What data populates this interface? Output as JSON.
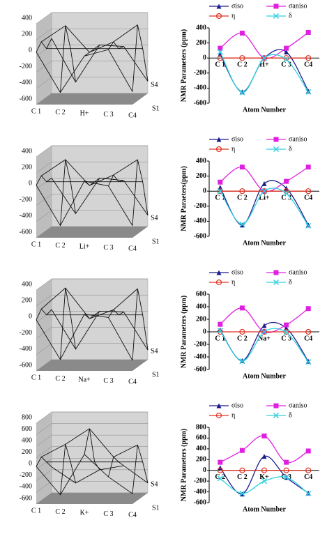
{
  "chart_data": [
    {
      "type": "surface3d",
      "categories": [
        "C 1",
        "C 2",
        "H+",
        "C 3",
        "C4"
      ],
      "series": [
        {
          "values": [
            50,
            -450,
            0,
            80,
            -440
          ]
        },
        {
          "values": [
            130,
            330,
            0,
            130,
            340
          ]
        },
        {
          "values": [
            0,
            0,
            0,
            0,
            0
          ]
        },
        {
          "values": [
            80,
            -460,
            0,
            -20,
            -450
          ]
        }
      ],
      "depth_labels": [
        "S1",
        "S4"
      ],
      "ylim": [
        -600,
        400
      ],
      "yticks": [
        -600,
        -400,
        -200,
        0,
        200,
        400
      ]
    },
    {
      "type": "line",
      "y_label": "NMR Parameters (ppm)",
      "x_label": "Atom Number",
      "categories": [
        "C 1",
        "C 2",
        "H+",
        "C 3",
        "C4"
      ],
      "series": [
        {
          "name": "σiso",
          "color": "#1a1a8c",
          "marker": "triangle",
          "values": [
            50,
            -450,
            0,
            80,
            -440
          ]
        },
        {
          "name": "σaniso",
          "color": "#e020e0",
          "marker": "square",
          "values": [
            130,
            330,
            0,
            130,
            340
          ]
        },
        {
          "name": "η",
          "color": "#e03020",
          "marker": "circle",
          "values": [
            0,
            0,
            0,
            0,
            0
          ]
        },
        {
          "name": "δ",
          "color": "#30d0e0",
          "marker": "x",
          "values": [
            80,
            -460,
            0,
            -20,
            -450
          ]
        }
      ],
      "ylim": [
        -600,
        400
      ],
      "yticks": [
        -600,
        -400,
        -200,
        0,
        200,
        400
      ]
    },
    {
      "type": "surface3d",
      "categories": [
        "C 1",
        "C 2",
        "Li+",
        "C 3",
        "C4"
      ],
      "series": [
        {
          "values": [
            50,
            -450,
            100,
            40,
            -450
          ]
        },
        {
          "values": [
            120,
            320,
            0,
            130,
            320
          ]
        },
        {
          "values": [
            0,
            0,
            0,
            0,
            0
          ]
        },
        {
          "values": [
            0,
            -440,
            0,
            -30,
            -460
          ]
        }
      ],
      "depth_labels": [
        "S1",
        "S4"
      ],
      "ylim": [
        -600,
        400
      ],
      "yticks": [
        -600,
        -400,
        -200,
        0,
        200,
        400
      ]
    },
    {
      "type": "line",
      "y_label": "NMR Paraeters(ppm)",
      "x_label": "Atom Number",
      "categories": [
        "C 1",
        "C 2",
        "Li+",
        "C 3",
        "C4"
      ],
      "series": [
        {
          "name": "σiso",
          "color": "#1a1a8c",
          "marker": "triangle",
          "values": [
            50,
            -450,
            100,
            40,
            -450
          ]
        },
        {
          "name": "σaniso",
          "color": "#e020e0",
          "marker": "square",
          "values": [
            120,
            320,
            0,
            130,
            320
          ]
        },
        {
          "name": "η",
          "color": "#e03020",
          "marker": "circle",
          "values": [
            0,
            0,
            0,
            0,
            0
          ]
        },
        {
          "name": "δ",
          "color": "#30d0e0",
          "marker": "x",
          "values": [
            0,
            -440,
            0,
            -30,
            -460
          ]
        }
      ],
      "ylim": [
        -600,
        400
      ],
      "yticks": [
        -600,
        -400,
        -200,
        0,
        200,
        400
      ]
    },
    {
      "type": "surface3d",
      "categories": [
        "C 1",
        "C 2",
        "Na+",
        "C 3",
        "C4"
      ],
      "series": [
        {
          "values": [
            30,
            -460,
            100,
            60,
            -470
          ]
        },
        {
          "values": [
            120,
            380,
            0,
            110,
            370
          ]
        },
        {
          "values": [
            0,
            0,
            0,
            0,
            0
          ]
        },
        {
          "values": [
            20,
            -470,
            0,
            -10,
            -480
          ]
        }
      ],
      "depth_labels": [
        "S1",
        "S4"
      ],
      "ylim": [
        -600,
        400
      ],
      "yticks": [
        -600,
        -400,
        -200,
        0,
        200,
        400
      ]
    },
    {
      "type": "line",
      "y_label": "NMR Parameters (ppm)",
      "x_label": "Atom Number",
      "categories": [
        "C 1",
        "C 2",
        "Na+",
        "C 3",
        "C4"
      ],
      "series": [
        {
          "name": "σiso",
          "color": "#1a1a8c",
          "marker": "triangle",
          "values": [
            30,
            -460,
            100,
            60,
            -470
          ]
        },
        {
          "name": "σaniso",
          "color": "#e020e0",
          "marker": "square",
          "values": [
            120,
            380,
            0,
            110,
            370
          ]
        },
        {
          "name": "η",
          "color": "#e03020",
          "marker": "circle",
          "values": [
            0,
            0,
            0,
            0,
            0
          ]
        },
        {
          "name": "δ",
          "color": "#30d0e0",
          "marker": "x",
          "values": [
            20,
            -470,
            0,
            -10,
            -480
          ]
        }
      ],
      "ylim": [
        -600,
        600
      ],
      "yticks": [
        -600,
        -400,
        -200,
        0,
        200,
        400,
        600
      ]
    },
    {
      "type": "surface3d",
      "categories": [
        "C 1",
        "C 2",
        "K+",
        "C 3",
        "C4"
      ],
      "series": [
        {
          "values": [
            50,
            -440,
            260,
            -130,
            -420
          ]
        },
        {
          "values": [
            150,
            370,
            640,
            150,
            360
          ]
        },
        {
          "values": [
            0,
            0,
            0,
            0,
            0
          ]
        },
        {
          "values": [
            -150,
            -430,
            -200,
            -130,
            -430
          ]
        }
      ],
      "depth_labels": [
        "S1",
        "S4"
      ],
      "ylim": [
        -600,
        800
      ],
      "yticks": [
        -600,
        -400,
        -200,
        0,
        200,
        400,
        600,
        800
      ]
    },
    {
      "type": "line",
      "y_label": "NMR Parameters (ppm)",
      "x_label": "Atom Number",
      "categories": [
        "C 2",
        "C 2",
        "K+",
        "C 3",
        "C4"
      ],
      "series": [
        {
          "name": "σiso",
          "color": "#1a1a8c",
          "marker": "triangle",
          "values": [
            50,
            -440,
            260,
            -130,
            -420
          ]
        },
        {
          "name": "σaniso",
          "color": "#e020e0",
          "marker": "square",
          "values": [
            150,
            370,
            640,
            150,
            360
          ]
        },
        {
          "name": "η",
          "color": "#e03020",
          "marker": "circle",
          "values": [
            0,
            0,
            0,
            0,
            0
          ]
        },
        {
          "name": "δ",
          "color": "#30d0e0",
          "marker": "x",
          "values": [
            -150,
            -430,
            -200,
            -130,
            -430
          ]
        }
      ],
      "ylim": [
        -600,
        800
      ],
      "yticks": [
        -600,
        -400,
        -200,
        0,
        200,
        400,
        600,
        800
      ]
    }
  ]
}
